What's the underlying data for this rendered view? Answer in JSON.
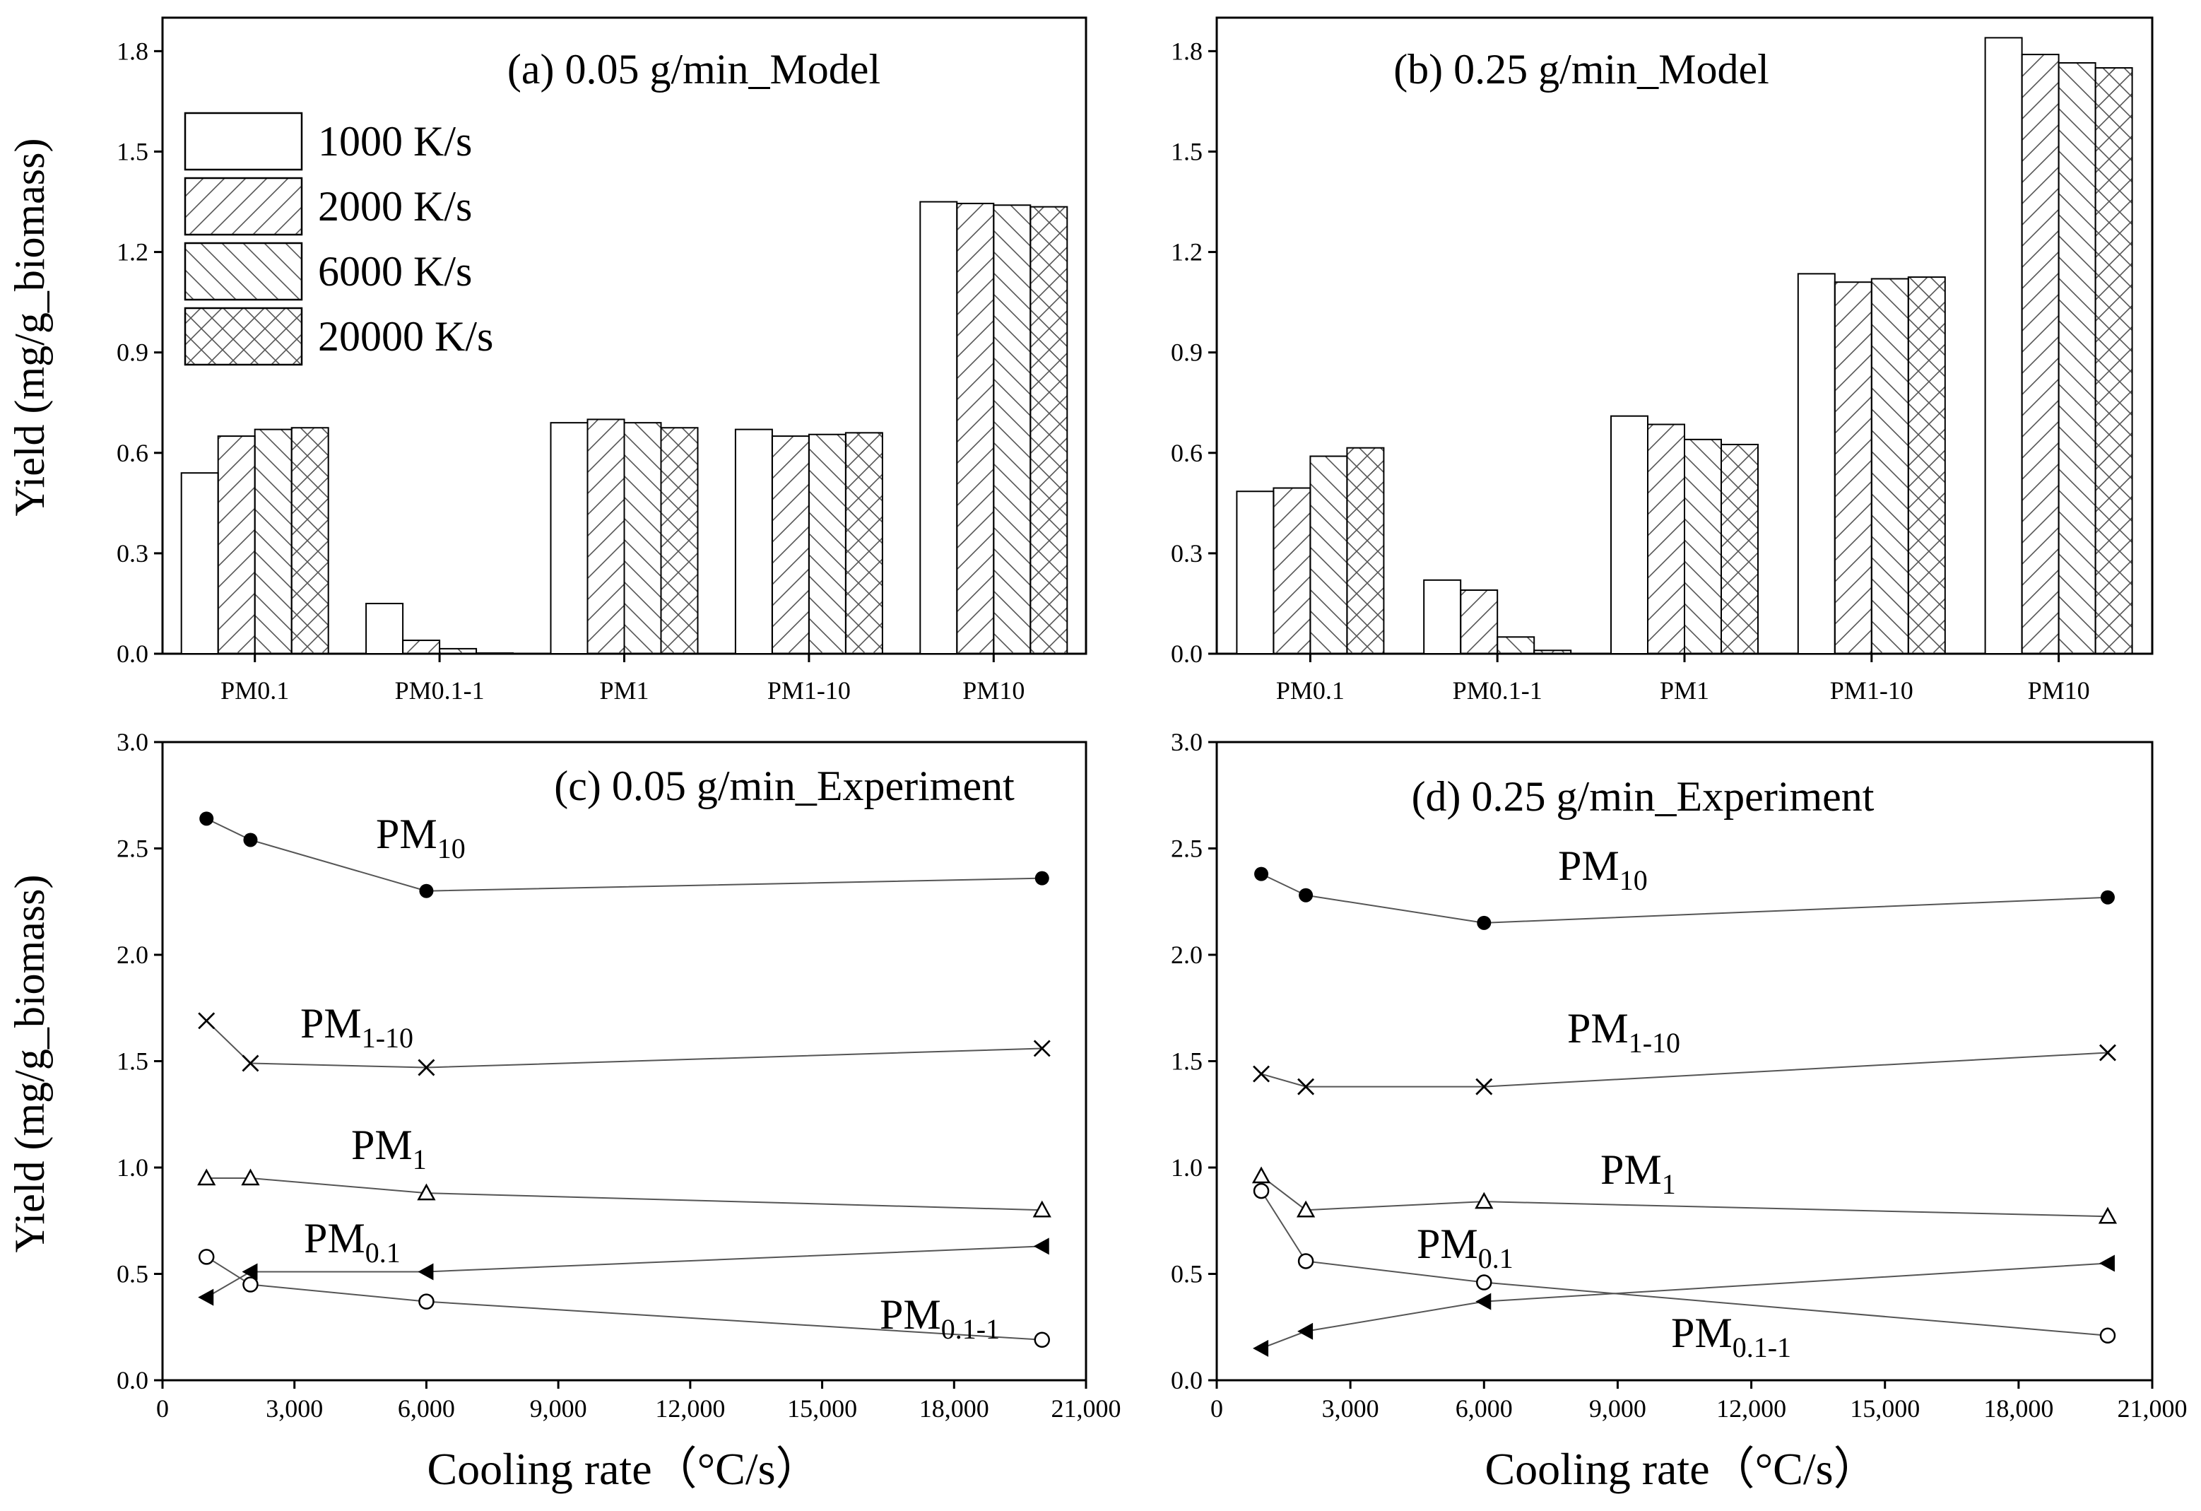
{
  "figure": {
    "ylabel": "Yield (mg/g_biomass)",
    "xlabel": "Cooling rate（°C/s）"
  },
  "legend": {
    "entries": [
      "1000 K/s",
      "2000 K/s",
      "6000 K/s",
      "20000 K/s"
    ],
    "patterns": [
      "none",
      "diag-up",
      "diag-down",
      "cross"
    ]
  },
  "chart_data": [
    {
      "type": "bar",
      "title": "(a)  0.05 g/min_Model",
      "categories": [
        "PM0.1",
        "PM0.1-1",
        "PM1",
        "PM1-10",
        "PM10"
      ],
      "series": [
        {
          "name": "1000 K/s",
          "values": [
            0.54,
            0.15,
            0.69,
            0.67,
            1.35
          ]
        },
        {
          "name": "2000 K/s",
          "values": [
            0.65,
            0.04,
            0.7,
            0.65,
            1.345
          ]
        },
        {
          "name": "6000 K/s",
          "values": [
            0.67,
            0.015,
            0.69,
            0.655,
            1.34
          ]
        },
        {
          "name": "20000 K/s",
          "values": [
            0.675,
            0.002,
            0.675,
            0.66,
            1.335
          ]
        }
      ],
      "ylim": [
        0,
        1.9
      ],
      "yticks": [
        "0.0",
        "0.3",
        "0.6",
        "0.9",
        "1.2",
        "1.5",
        "1.8"
      ]
    },
    {
      "type": "bar",
      "title": "(b)  0.25 g/min_Model",
      "categories": [
        "PM0.1",
        "PM0.1-1",
        "PM1",
        "PM1-10",
        "PM10"
      ],
      "series": [
        {
          "name": "1000 K/s",
          "values": [
            0.485,
            0.22,
            0.71,
            1.135,
            1.84
          ]
        },
        {
          "name": "2000 K/s",
          "values": [
            0.495,
            0.19,
            0.685,
            1.11,
            1.79
          ]
        },
        {
          "name": "6000 K/s",
          "values": [
            0.59,
            0.05,
            0.64,
            1.12,
            1.765
          ]
        },
        {
          "name": "20000 K/s",
          "values": [
            0.615,
            0.01,
            0.625,
            1.125,
            1.75
          ]
        }
      ],
      "ylim": [
        0,
        1.9
      ],
      "yticks": [
        "0.0",
        "0.3",
        "0.6",
        "0.9",
        "1.2",
        "1.5",
        "1.8"
      ]
    },
    {
      "type": "line",
      "title": "(c)  0.05 g/min_Experiment",
      "x": [
        1000,
        2000,
        6000,
        20000
      ],
      "xlim": [
        0,
        21000
      ],
      "ylim": [
        0,
        3.0
      ],
      "xticks": [
        "0",
        "3,000",
        "6,000",
        "9,000",
        "12,000",
        "15,000",
        "18,000",
        "21,000"
      ],
      "yticks": [
        "0.0",
        "0.5",
        "1.0",
        "1.5",
        "2.0",
        "2.5",
        "3.0"
      ],
      "series": [
        {
          "name": "PM",
          "sub": "10",
          "marker": "filled-circle",
          "values": [
            2.64,
            2.54,
            2.3,
            2.36
          ]
        },
        {
          "name": "PM",
          "sub": "1-10",
          "marker": "x",
          "values": [
            1.69,
            1.49,
            1.47,
            1.56
          ]
        },
        {
          "name": "PM",
          "sub": "1",
          "marker": "open-triangle",
          "values": [
            0.95,
            0.95,
            0.88,
            0.8
          ]
        },
        {
          "name": "PM",
          "sub": "0.1",
          "marker": "filled-left-triangle",
          "values": [
            0.39,
            0.51,
            0.51,
            0.63
          ]
        },
        {
          "name": "PM",
          "sub": "0.1-1",
          "marker": "open-circle",
          "values": [
            0.58,
            0.45,
            0.37,
            0.19
          ]
        }
      ]
    },
    {
      "type": "line",
      "title": "(d) 0.25 g/min_Experiment",
      "x": [
        1000,
        2000,
        6000,
        20000
      ],
      "xlim": [
        0,
        21000
      ],
      "ylim": [
        0,
        3.0
      ],
      "xticks": [
        "0",
        "3,000",
        "6,000",
        "9,000",
        "12,000",
        "15,000",
        "18,000",
        "21,000"
      ],
      "yticks": [
        "0.0",
        "0.5",
        "1.0",
        "1.5",
        "2.0",
        "2.5",
        "3.0"
      ],
      "series": [
        {
          "name": "PM",
          "sub": "10",
          "marker": "filled-circle",
          "values": [
            2.38,
            2.28,
            2.15,
            2.27
          ]
        },
        {
          "name": "PM",
          "sub": "1-10",
          "marker": "x",
          "values": [
            1.44,
            1.38,
            1.38,
            1.54
          ]
        },
        {
          "name": "PM",
          "sub": "1",
          "marker": "open-triangle",
          "values": [
            0.96,
            0.8,
            0.84,
            0.77
          ]
        },
        {
          "name": "PM",
          "sub": "0.1",
          "marker": "filled-left-triangle",
          "values": [
            0.15,
            0.23,
            0.37,
            0.55
          ]
        },
        {
          "name": "PM",
          "sub": "0.1-1",
          "marker": "open-circle",
          "values": [
            0.89,
            0.56,
            0.46,
            0.21
          ]
        }
      ]
    }
  ]
}
